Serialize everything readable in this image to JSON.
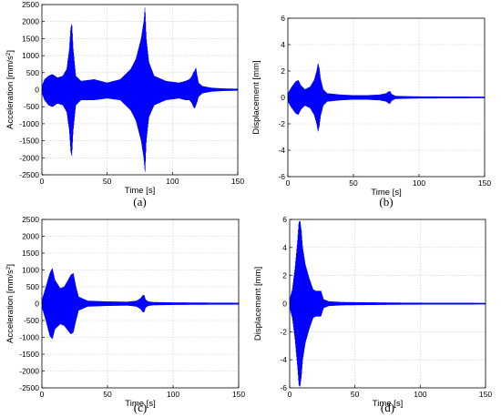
{
  "chart_data": [
    {
      "type": "line",
      "panel_label": "(a)",
      "xlabel": "Time [s]",
      "ylabel": "Acceleration [mm/s²]",
      "ylabel_parts": {
        "text": "Acceleration [mm/s",
        "sup": "2",
        "tail": "]"
      },
      "xlim": [
        0,
        150
      ],
      "ylim": [
        -2500,
        2500
      ],
      "xticks": [
        0,
        50,
        100,
        150
      ],
      "yticks": [
        -2500,
        -2000,
        -1500,
        -1000,
        -500,
        0,
        500,
        1000,
        1500,
        2000,
        2500
      ],
      "grid": true,
      "series": [
        {
          "color": "#0000ff",
          "envelope": {
            "t": [
              0,
              2,
              5,
              8,
              12,
              16,
              19,
              21,
              22,
              23,
              24,
              26,
              30,
              40,
              50,
              60,
              68,
              72,
              76,
              78,
              79,
              80,
              82,
              86,
              95,
              105,
              110,
              113,
              115,
              116,
              117,
              118,
              119,
              120,
              123,
              130,
              140,
              150
            ],
            "upper": [
              100,
              300,
              400,
              450,
              350,
              400,
              600,
              1200,
              1800,
              1950,
              1200,
              400,
              250,
              300,
              200,
              300,
              600,
              900,
              1500,
              2000,
              2450,
              1500,
              800,
              400,
              250,
              200,
              250,
              300,
              400,
              500,
              550,
              650,
              400,
              200,
              100,
              50,
              30,
              20
            ],
            "lower": [
              -100,
              -300,
              -450,
              -500,
              -400,
              -450,
              -650,
              -1200,
              -1800,
              -1950,
              -1200,
              -450,
              -300,
              -300,
              -250,
              -300,
              -600,
              -900,
              -1500,
              -2000,
              -2450,
              -1500,
              -800,
              -450,
              -300,
              -250,
              -300,
              -300,
              -400,
              -500,
              -550,
              -450,
              -350,
              -200,
              -100,
              -50,
              -30,
              -20
            ]
          }
        }
      ]
    },
    {
      "type": "line",
      "panel_label": "(b)",
      "xlabel": "Time [s]",
      "ylabel": "Displacement [mm]",
      "xlim": [
        0,
        150
      ],
      "ylim": [
        -6,
        6
      ],
      "xticks": [
        0,
        50,
        100,
        150
      ],
      "yticks": [
        -6,
        -4,
        -2,
        0,
        2,
        4,
        6
      ],
      "grid": true,
      "series": [
        {
          "color": "#0000ff",
          "envelope": {
            "t": [
              0,
              3,
              6,
              8,
              10,
              13,
              17,
              20,
              22,
              23,
              24,
              25,
              27,
              30,
              40,
              50,
              60,
              70,
              75,
              77,
              78,
              79,
              82,
              90,
              100,
              120,
              150
            ],
            "upper": [
              0.3,
              0.8,
              1.2,
              1.3,
              0.9,
              0.6,
              0.8,
              1.3,
              2.0,
              2.6,
              2.2,
              1.4,
              0.6,
              0.3,
              0.2,
              0.15,
              0.15,
              0.2,
              0.3,
              0.45,
              0.45,
              0.25,
              0.1,
              0.08,
              0.06,
              0.05,
              0.04
            ],
            "lower": [
              -0.3,
              -0.8,
              -1.2,
              -1.3,
              -0.9,
              -0.6,
              -0.8,
              -1.3,
              -2.0,
              -2.6,
              -2.2,
              -1.4,
              -0.6,
              -0.3,
              -0.2,
              -0.15,
              -0.15,
              -0.2,
              -0.3,
              -0.45,
              -0.45,
              -0.25,
              -0.1,
              -0.08,
              -0.06,
              -0.05,
              -0.04
            ]
          }
        }
      ]
    },
    {
      "type": "line",
      "panel_label": "(c)",
      "xlabel": "Time [s]",
      "ylabel": "Acceleration [mm/s²]",
      "ylabel_parts": {
        "text": "Acceleration [mm/s",
        "sup": "2",
        "tail": "]"
      },
      "xlim": [
        0,
        150
      ],
      "ylim": [
        -2500,
        2500
      ],
      "xticks": [
        0,
        50,
        100,
        150
      ],
      "yticks": [
        -2500,
        -2000,
        -1500,
        -1000,
        -500,
        0,
        500,
        1000,
        1500,
        2000,
        2500
      ],
      "grid": true,
      "series": [
        {
          "color": "#0000ff",
          "envelope": {
            "t": [
              0,
              3,
              6,
              8,
              10,
              14,
              17,
              20,
              22,
              24,
              26,
              28,
              35,
              50,
              65,
              72,
              75,
              77,
              78,
              79,
              81,
              85,
              100,
              120,
              150
            ],
            "upper": [
              100,
              500,
              900,
              1050,
              700,
              450,
              500,
              700,
              850,
              900,
              500,
              200,
              80,
              60,
              50,
              80,
              150,
              250,
              250,
              120,
              60,
              40,
              30,
              25,
              20
            ],
            "lower": [
              -100,
              -500,
              -950,
              -1050,
              -750,
              -600,
              -650,
              -800,
              -900,
              -850,
              -500,
              -200,
              -80,
              -60,
              -50,
              -80,
              -150,
              -250,
              -250,
              -120,
              -60,
              -40,
              -30,
              -25,
              -20
            ]
          }
        }
      ]
    },
    {
      "type": "line",
      "panel_label": "(d)",
      "xlabel": "Time [s]",
      "ylabel": "Displacement [mm]",
      "xlim": [
        0,
        150
      ],
      "ylim": [
        -6,
        6
      ],
      "xticks": [
        0,
        50,
        100,
        150
      ],
      "yticks": [
        -6,
        -4,
        -2,
        0,
        2,
        4,
        6
      ],
      "grid": true,
      "series": [
        {
          "color": "#0000ff",
          "envelope": {
            "t": [
              0,
              2,
              4,
              6,
              7,
              8,
              9,
              10,
              12,
              15,
              18,
              20,
              22,
              24,
              26,
              30,
              40,
              60,
              80,
              100,
              150
            ],
            "upper": [
              0.3,
              1.0,
              2.5,
              4.5,
              5.8,
              5.9,
              5.2,
              4.0,
              2.8,
              1.8,
              1.0,
              0.9,
              0.9,
              0.9,
              0.3,
              0.15,
              0.1,
              0.08,
              0.06,
              0.05,
              0.04
            ],
            "lower": [
              -0.3,
              -1.0,
              -2.5,
              -4.5,
              -5.8,
              -5.9,
              -5.2,
              -4.0,
              -2.8,
              -1.8,
              -1.0,
              -0.9,
              -0.9,
              -0.9,
              -0.3,
              -0.15,
              -0.1,
              -0.08,
              -0.06,
              -0.05,
              -0.04
            ]
          }
        }
      ]
    }
  ]
}
